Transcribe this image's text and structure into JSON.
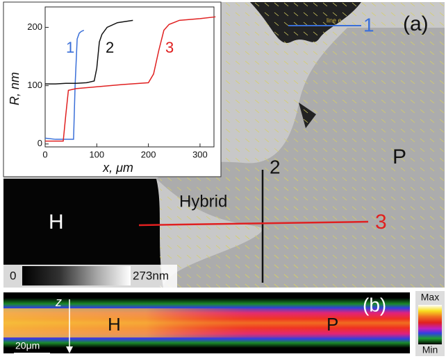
{
  "chart_data": {
    "type": "line",
    "x_label": "x, μm",
    "y_label": "R, nm",
    "xlim": [
      0,
      327
    ],
    "ylim": [
      -5,
      235
    ],
    "xticks": [
      0,
      100,
      200,
      300
    ],
    "yticks": [
      0,
      100,
      200
    ],
    "series": [
      {
        "name": "1",
        "color": "#3a6fd8",
        "x": [
          0,
          20,
          40,
          55,
          58,
          62,
          66,
          70,
          75
        ],
        "values": [
          10,
          8,
          8,
          8,
          100,
          180,
          190,
          193,
          195
        ]
      },
      {
        "name": "2",
        "color": "#111111",
        "x": [
          0,
          20,
          40,
          60,
          80,
          95,
          100,
          105,
          110,
          120,
          140,
          170
        ],
        "values": [
          103,
          103,
          104,
          104,
          105,
          108,
          130,
          175,
          188,
          200,
          208,
          212
        ]
      },
      {
        "name": "3",
        "color": "#e02020",
        "x": [
          0,
          20,
          35,
          40,
          45,
          60,
          100,
          150,
          200,
          210,
          220,
          230,
          240,
          260,
          300,
          330
        ],
        "values": [
          5,
          5,
          5,
          50,
          92,
          95,
          98,
          102,
          105,
          120,
          160,
          195,
          205,
          212,
          215,
          218
        ]
      }
    ]
  },
  "figure": {
    "panel_a": {
      "label": "(a)",
      "line_labels": [
        "1",
        "2",
        "3"
      ],
      "line_name": "line e",
      "regions": [
        "H",
        "Hybrid",
        "P"
      ],
      "scale_min": "0",
      "scale_max": "273nm"
    },
    "panel_b": {
      "label": "(b)",
      "axis": "z",
      "regions": [
        "H",
        "P"
      ],
      "scale_bar": "20μm",
      "color_max": "Max",
      "color_min": "Min"
    }
  }
}
